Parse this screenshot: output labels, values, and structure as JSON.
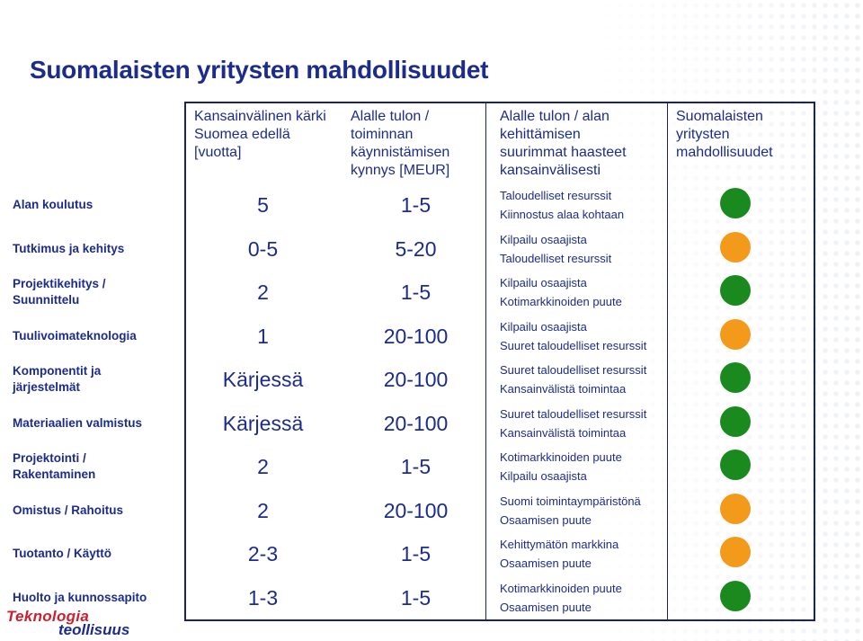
{
  "title": "Suomalaisten yritysten mahdollisuudet",
  "headers": {
    "col1": [
      "Kansainvälinen kärki",
      "Suomea edellä",
      "[vuotta]"
    ],
    "col2": [
      "Alalle tulon /",
      "toiminnan",
      "käynnistämisen",
      "kynnys [MEUR]"
    ],
    "col3": [
      "Alalle tulon / alan",
      "kehittämisen",
      "suurimmat haasteet",
      "kansainvälisesti"
    ],
    "col4": [
      "Suomalaisten",
      "yritysten",
      "mahdollisuudet"
    ]
  },
  "colors": {
    "green": "#1a8a1e",
    "orange": "#f39a1a",
    "text": "#1c2c8c"
  },
  "rows": [
    {
      "label": [
        "Alan koulutus"
      ],
      "lead": "5",
      "threshold": "1-5",
      "challenges": [
        "Taloudelliset resurssit",
        "Kiinnostus alaa kohtaan"
      ],
      "opportunity": "green"
    },
    {
      "label": [
        "Tutkimus ja kehitys"
      ],
      "lead": "0-5",
      "threshold": "5-20",
      "challenges": [
        "Kilpailu osaajista",
        "Taloudelliset resurssit"
      ],
      "opportunity": "orange"
    },
    {
      "label": [
        "Projektikehitys /",
        "Suunnittelu"
      ],
      "lead": "2",
      "threshold": "1-5",
      "challenges": [
        "Kilpailu osaajista",
        "Kotimarkkinoiden puute"
      ],
      "opportunity": "green"
    },
    {
      "label": [
        "Tuulivoimateknologia"
      ],
      "lead": "1",
      "threshold": "20-100",
      "challenges": [
        "Kilpailu osaajista",
        "Suuret taloudelliset resurssit"
      ],
      "opportunity": "orange"
    },
    {
      "label": [
        "Komponentit ja",
        "järjestelmät"
      ],
      "lead": "Kärjessä",
      "threshold": "20-100",
      "challenges": [
        "Suuret taloudelliset resurssit",
        "Kansainvälistä toimintaa"
      ],
      "opportunity": "green"
    },
    {
      "label": [
        "Materiaalien valmistus"
      ],
      "lead": "Kärjessä",
      "threshold": "20-100",
      "challenges": [
        "Suuret taloudelliset resurssit",
        "Kansainvälistä toimintaa"
      ],
      "opportunity": "green"
    },
    {
      "label": [
        "Projektointi /",
        "Rakentaminen"
      ],
      "lead": "2",
      "threshold": "1-5",
      "challenges": [
        "Kotimarkkinoiden puute",
        "Kilpailu osaajista"
      ],
      "opportunity": "green"
    },
    {
      "label": [
        "Omistus / Rahoitus"
      ],
      "lead": "2",
      "threshold": "20-100",
      "challenges": [
        "Suomi toimintaympäristönä",
        "Osaamisen puute"
      ],
      "opportunity": "orange"
    },
    {
      "label": [
        "Tuotanto / Käyttö"
      ],
      "lead": "2-3",
      "threshold": "1-5",
      "challenges": [
        "Kehittymätön markkina",
        "Osaamisen puute"
      ],
      "opportunity": "orange"
    },
    {
      "label": [
        "Huolto ja kunnossapito"
      ],
      "lead": "1-3",
      "threshold": "1-5",
      "challenges": [
        "Kotimarkkinoiden puute",
        "Osaamisen puute"
      ],
      "opportunity": "green"
    }
  ],
  "logo": {
    "line1": "Teknologia",
    "line2": "teollisuus"
  }
}
